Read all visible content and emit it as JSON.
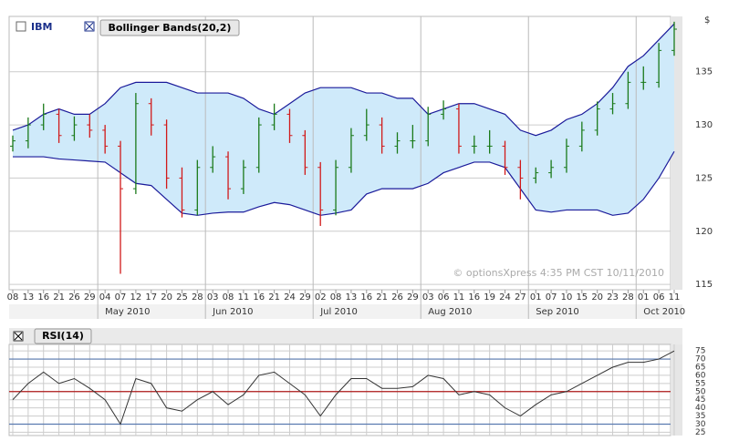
{
  "legend": {
    "ibm": "IBM",
    "bands": "Bollinger Bands(20,2)"
  },
  "chart_data": [
    {
      "type": "ohlc",
      "categories": [
        "08",
        "13",
        "16",
        "21",
        "26",
        "29",
        "04",
        "07",
        "12",
        "17",
        "20",
        "25",
        "28",
        "03",
        "08",
        "11",
        "16",
        "21",
        "24",
        "29",
        "02",
        "08",
        "13",
        "16",
        "21",
        "26",
        "29",
        "03",
        "06",
        "11",
        "16",
        "19",
        "24",
        "27",
        "01",
        "07",
        "10",
        "15",
        "20",
        "23",
        "28",
        "01",
        "06",
        "11"
      ],
      "month_labels": [
        null,
        null,
        null,
        null,
        null,
        null,
        "May 2010",
        null,
        null,
        null,
        null,
        null,
        null,
        "Jun 2010",
        null,
        null,
        null,
        null,
        null,
        null,
        "Jul 2010",
        null,
        null,
        null,
        null,
        null,
        null,
        "Aug 2010",
        null,
        null,
        null,
        null,
        null,
        null,
        "Sep 2010",
        null,
        null,
        null,
        null,
        null,
        null,
        "Oct 2010",
        null,
        null
      ],
      "open": [
        128,
        128.5,
        130,
        131,
        129,
        130,
        129.5,
        128,
        124,
        132,
        130,
        125,
        122,
        126,
        127,
        124,
        126,
        130,
        131,
        129,
        126,
        122,
        126,
        129,
        130,
        128,
        128.5,
        128.5,
        131,
        131.5,
        128,
        128,
        128,
        126,
        125,
        125.5,
        126,
        128,
        129.5,
        131.5,
        132,
        134,
        134,
        137
      ],
      "high": [
        129,
        130.7,
        132,
        131.5,
        130.8,
        131,
        130,
        128.5,
        133,
        132.5,
        130.5,
        126,
        126.7,
        128,
        127.5,
        126.7,
        130.7,
        132,
        131.5,
        129.5,
        126.5,
        126.7,
        129.7,
        131.5,
        130.7,
        129.3,
        130,
        131.7,
        132.3,
        132,
        129,
        129.5,
        128.5,
        126.7,
        126,
        126.7,
        128.7,
        130.3,
        132.2,
        133,
        135,
        135.5,
        137.7,
        139.7
      ],
      "low": [
        127.5,
        127.8,
        129.5,
        128.3,
        128.5,
        128.8,
        127.3,
        116,
        123.5,
        129,
        124,
        121.3,
        121.5,
        125.5,
        123,
        123.5,
        125.5,
        129.5,
        128.3,
        125.3,
        120.5,
        121.5,
        125.5,
        128.5,
        127.3,
        127.3,
        127.8,
        128,
        130.5,
        127.3,
        127.3,
        127.3,
        125.3,
        123,
        124.5,
        125,
        125.5,
        127.5,
        129,
        131,
        131.5,
        133.3,
        133.5,
        136.5
      ],
      "close": [
        128.5,
        130,
        131,
        129,
        130,
        129.5,
        128,
        124,
        132,
        130,
        125,
        122,
        126,
        127,
        124,
        126,
        130,
        131,
        129,
        126,
        122,
        126,
        129,
        130,
        128,
        128.5,
        128.5,
        131,
        131.5,
        128,
        128,
        128,
        126,
        125,
        125.5,
        126,
        128,
        129.5,
        131.5,
        132,
        134,
        134,
        137,
        139
      ],
      "up_color": "#1a7a1a",
      "down_color": "#d11a1a",
      "bands": {
        "color": "#1a1a9a",
        "fill": "#cfeafa",
        "upper": [
          129.5,
          130,
          131,
          131.5,
          131,
          131,
          132,
          133.5,
          134,
          134,
          134,
          133.5,
          133,
          133,
          133,
          132.5,
          131.5,
          131,
          132,
          133,
          133.5,
          133.5,
          133.5,
          133,
          133,
          132.5,
          132.5,
          131,
          131.5,
          132,
          132,
          131.5,
          131,
          129.5,
          129,
          129.5,
          130.5,
          131,
          132,
          133.5,
          135.5,
          136.5,
          138,
          139.5
        ],
        "lower": [
          127,
          127,
          127,
          126.8,
          126.7,
          126.6,
          126.5,
          125.5,
          124.5,
          124.3,
          123,
          121.7,
          121.5,
          121.7,
          121.8,
          121.8,
          122.3,
          122.7,
          122.5,
          122,
          121.5,
          121.7,
          122,
          123.5,
          124,
          124,
          124,
          124.5,
          125.5,
          126,
          126.5,
          126.5,
          126,
          124,
          122,
          121.8,
          122,
          122,
          122,
          121.5,
          121.7,
          123,
          125,
          127.5
        ]
      },
      "ylim": [
        114.5,
        140.2
      ],
      "yticks": [
        115,
        120,
        125,
        130,
        135
      ],
      "y_unit": "$",
      "grid": true,
      "watermark": "© optionsXpress 4:35 PM CST 10/11/2010"
    },
    {
      "type": "line",
      "title": "RSI(14)",
      "color": "#333333",
      "values": [
        45,
        55,
        62,
        55,
        58,
        52,
        45,
        30,
        58,
        55,
        40,
        38,
        45,
        50,
        42,
        48,
        60,
        62,
        55,
        48,
        35,
        48,
        58,
        58,
        52,
        52,
        53,
        60,
        58,
        48,
        50,
        48,
        40,
        35,
        42,
        48,
        50,
        55,
        60,
        65,
        68,
        68,
        70,
        75
      ],
      "ylim": [
        23,
        79
      ],
      "yticks": [
        25,
        30,
        35,
        40,
        45,
        50,
        55,
        60,
        65,
        70,
        75
      ],
      "reference_lines": [
        {
          "value": 30,
          "color": "#5a7ab0"
        },
        {
          "value": 50,
          "color": "#b01a1a"
        },
        {
          "value": 70,
          "color": "#5a7ab0"
        }
      ]
    }
  ]
}
